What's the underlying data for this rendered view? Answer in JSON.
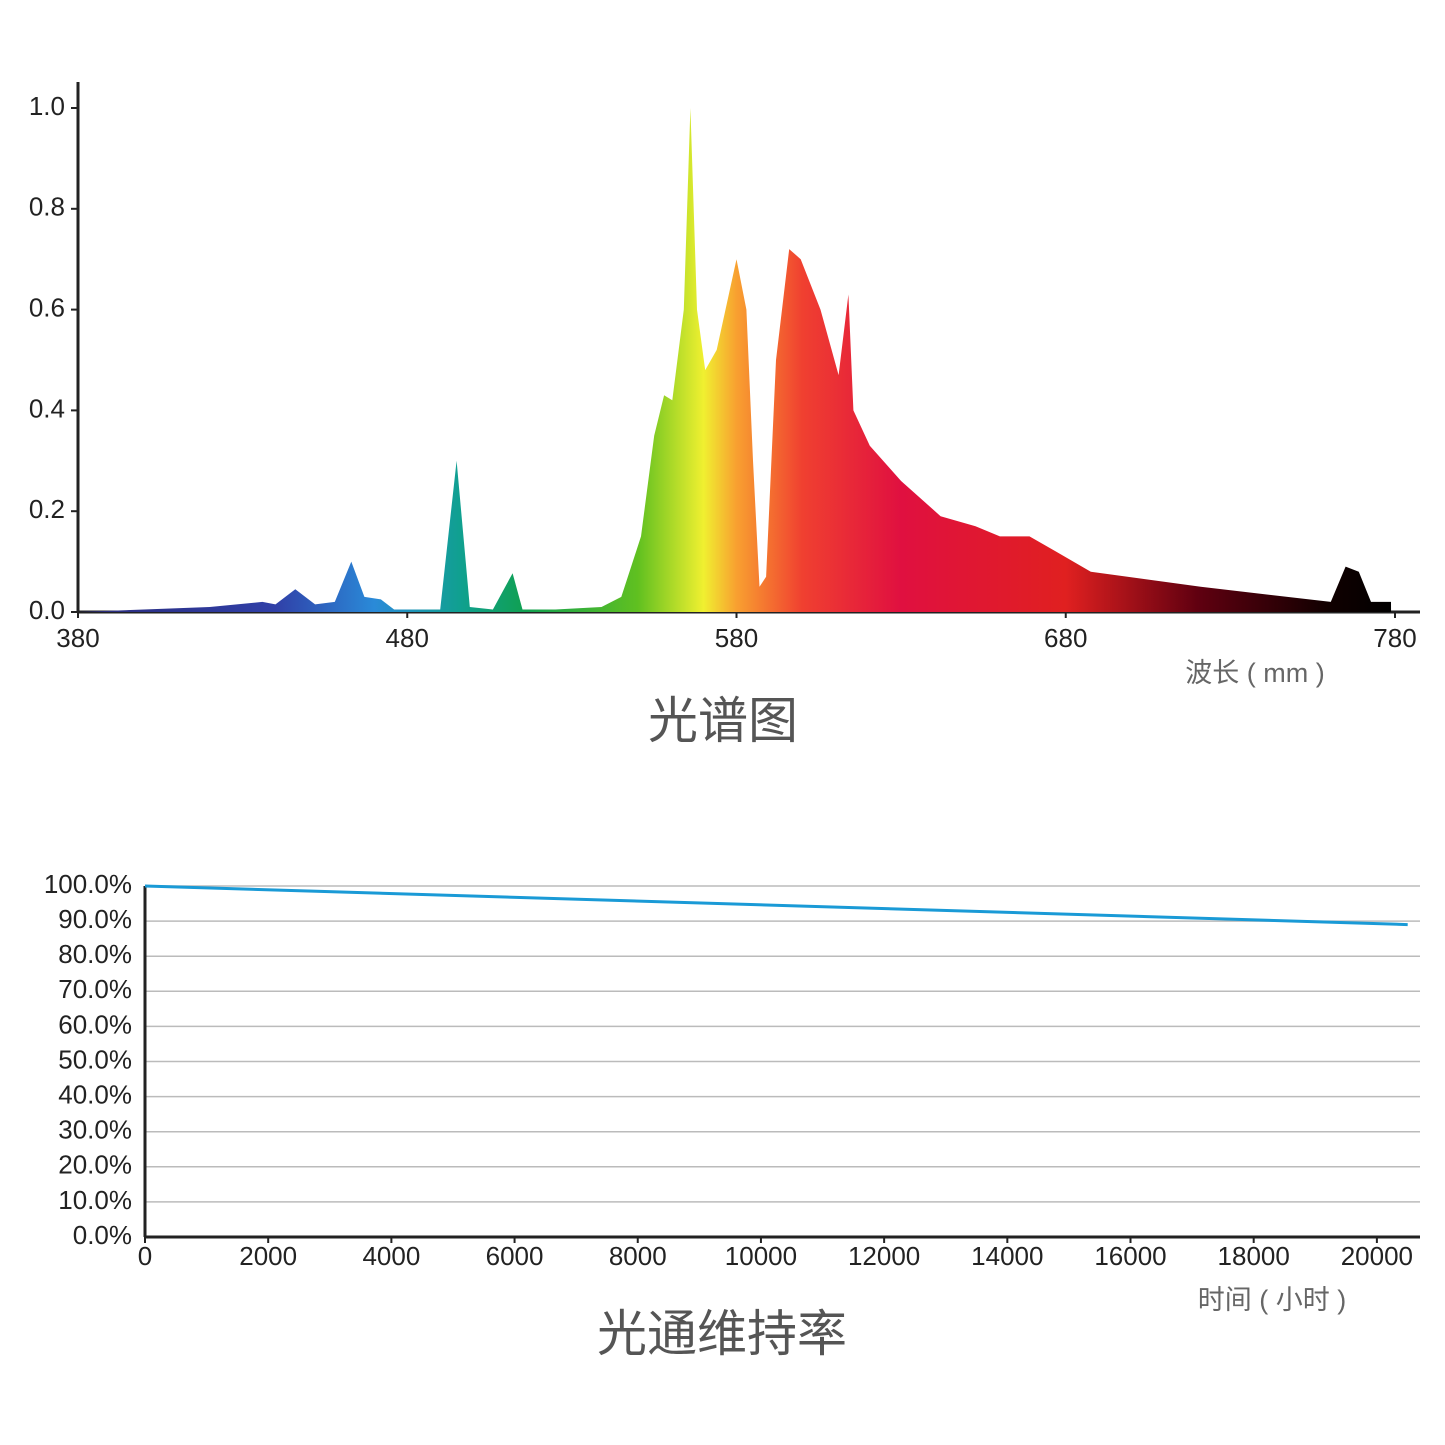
{
  "chart_data": [
    {
      "type": "area",
      "title": "光谱图",
      "xlabel": "波长 ( mm )",
      "x": [
        380,
        400,
        420,
        436,
        440,
        446,
        452,
        458,
        463,
        467,
        472,
        476,
        490,
        495,
        499,
        506,
        512,
        515,
        525,
        539,
        545,
        551,
        555,
        558,
        560.5,
        564,
        566,
        568,
        570.5,
        574,
        580,
        583,
        585,
        587,
        589,
        592,
        596,
        599.5,
        605.5,
        611,
        614,
        615.5,
        620.5,
        630,
        642,
        652.6,
        660,
        669,
        677,
        687.6,
        721,
        760.5,
        765,
        769,
        772.7,
        778.8
      ],
      "values": [
        0,
        0.005,
        0.01,
        0.02,
        0.015,
        0.045,
        0.015,
        0.02,
        0.1,
        0.03,
        0.025,
        0.005,
        0.005,
        0.3,
        0.01,
        0.005,
        0.077,
        0.005,
        0.005,
        0.01,
        0.03,
        0.15,
        0.35,
        0.43,
        0.42,
        0.6,
        1.0,
        0.6,
        0.48,
        0.52,
        0.7,
        0.6,
        0.3,
        0.05,
        0.07,
        0.5,
        0.72,
        0.7,
        0.6,
        0.47,
        0.63,
        0.4,
        0.33,
        0.26,
        0.19,
        0.17,
        0.15,
        0.15,
        0.12,
        0.08,
        0.05,
        0.02,
        0.09,
        0.08,
        0.02,
        0.02
      ],
      "xlim": [
        380,
        780
      ],
      "xticks": [
        380,
        480,
        580,
        680,
        780
      ],
      "ylim": [
        0,
        1
      ],
      "yticks": [
        {
          "value": 0,
          "label": "0.0"
        },
        0.2,
        0.4,
        0.6,
        0.8,
        {
          "value": 1,
          "label": "1.0"
        }
      ]
    },
    {
      "type": "line",
      "title": "光通维持率",
      "xlabel": "时间 ( 小时 )",
      "x": [
        0,
        20500
      ],
      "values": [
        100,
        89
      ],
      "color": "#1a9ad6",
      "xlim": [
        0,
        20700
      ],
      "xticks": [
        0,
        2000,
        4000,
        6000,
        8000,
        10000,
        12000,
        14000,
        16000,
        18000,
        20000
      ],
      "ylim": [
        0,
        100
      ],
      "yticks": [
        {
          "value": 0,
          "label": "0.0%"
        },
        {
          "value": 10,
          "label": "10.0%"
        },
        {
          "value": 20,
          "label": "20.0%"
        },
        {
          "value": 30,
          "label": "30.0%"
        },
        {
          "value": 40,
          "label": "40.0%"
        },
        {
          "value": 50,
          "label": "50.0%"
        },
        {
          "value": 60,
          "label": "60.0%"
        },
        {
          "value": 70,
          "label": "70.0%"
        },
        {
          "value": 80,
          "label": "80.0%"
        },
        {
          "value": 90,
          "label": "90.0%"
        },
        {
          "value": 100,
          "label": "100.0%"
        }
      ],
      "grid": true
    }
  ]
}
